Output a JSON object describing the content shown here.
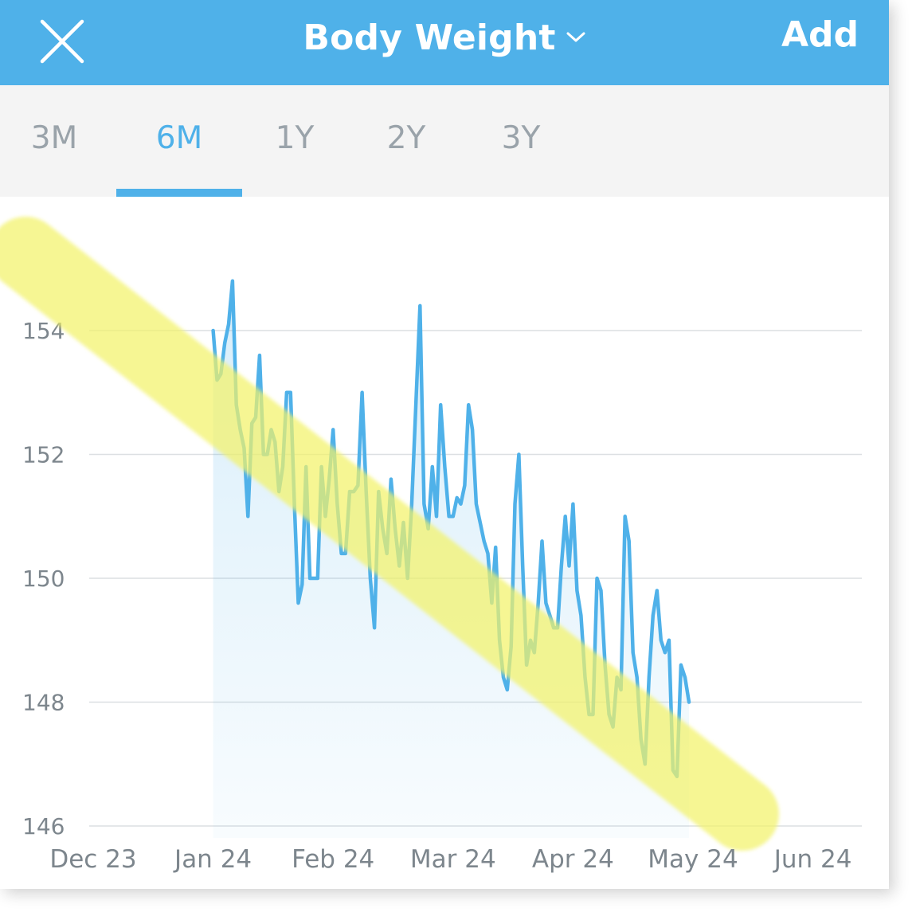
{
  "header": {
    "title": "Body Weight",
    "add_label": "Add",
    "icons": {
      "close": "close-icon",
      "dropdown": "chevron-down-icon"
    }
  },
  "tabs": [
    {
      "label": "3M",
      "active": false
    },
    {
      "label": "6M",
      "active": true
    },
    {
      "label": "1Y",
      "active": false
    },
    {
      "label": "2Y",
      "active": false
    },
    {
      "label": "3Y",
      "active": false
    }
  ],
  "colors": {
    "accent": "#4fb1e9",
    "header_bg": "#4fb1e9",
    "tab_bar_bg": "#f4f4f4",
    "line": "#4fb1e9",
    "highlight": "#f5f57a",
    "tick_text": "#7d868d"
  },
  "chart_data": {
    "type": "area",
    "x_tick_labels": [
      "Dec 23",
      "Jan 24",
      "Feb 24",
      "Mar 24",
      "Apr 24",
      "May 24",
      "Jun 24"
    ],
    "y_tick_labels": [
      "154",
      "152",
      "150",
      "148",
      "146"
    ],
    "y_ticks": [
      154,
      152,
      150,
      148,
      146
    ],
    "ylim": [
      145.8,
      155.0
    ],
    "xlim": [
      "2023-12-01",
      "2024-06-01"
    ],
    "grid": "horizontal",
    "annotation": "diagonal yellow highlighter stroke marking the downward trend",
    "series": [
      {
        "values": [
          [
            "2024-01-01",
            154.0
          ],
          [
            "2024-01-02",
            153.2
          ],
          [
            "2024-01-03",
            153.3
          ],
          [
            "2024-01-04",
            153.8
          ],
          [
            "2024-01-05",
            154.1
          ],
          [
            "2024-01-06",
            154.8
          ],
          [
            "2024-01-07",
            152.8
          ],
          [
            "2024-01-08",
            152.4
          ],
          [
            "2024-01-09",
            152.1
          ],
          [
            "2024-01-10",
            151.0
          ],
          [
            "2024-01-11",
            152.5
          ],
          [
            "2024-01-12",
            152.6
          ],
          [
            "2024-01-13",
            153.6
          ],
          [
            "2024-01-14",
            152.0
          ],
          [
            "2024-01-15",
            152.0
          ],
          [
            "2024-01-16",
            152.4
          ],
          [
            "2024-01-17",
            152.2
          ],
          [
            "2024-01-18",
            151.4
          ],
          [
            "2024-01-19",
            151.8
          ],
          [
            "2024-01-20",
            153.0
          ],
          [
            "2024-01-21",
            153.0
          ],
          [
            "2024-01-22",
            151.2
          ],
          [
            "2024-01-23",
            149.6
          ],
          [
            "2024-01-24",
            149.9
          ],
          [
            "2024-01-25",
            151.8
          ],
          [
            "2024-01-26",
            150.0
          ],
          [
            "2024-01-27",
            150.0
          ],
          [
            "2024-01-28",
            150.0
          ],
          [
            "2024-01-29",
            151.8
          ],
          [
            "2024-01-30",
            151.0
          ],
          [
            "2024-01-31",
            151.6
          ],
          [
            "2024-02-01",
            152.4
          ],
          [
            "2024-02-02",
            151.2
          ],
          [
            "2024-02-03",
            150.4
          ],
          [
            "2024-02-04",
            150.4
          ],
          [
            "2024-02-05",
            151.4
          ],
          [
            "2024-02-06",
            151.4
          ],
          [
            "2024-02-07",
            151.5
          ],
          [
            "2024-02-08",
            153.0
          ],
          [
            "2024-02-09",
            151.4
          ],
          [
            "2024-02-10",
            150.0
          ],
          [
            "2024-02-11",
            149.2
          ],
          [
            "2024-02-12",
            151.4
          ],
          [
            "2024-02-13",
            150.8
          ],
          [
            "2024-02-14",
            150.4
          ],
          [
            "2024-02-15",
            151.6
          ],
          [
            "2024-02-16",
            150.8
          ],
          [
            "2024-02-17",
            150.2
          ],
          [
            "2024-02-18",
            150.9
          ],
          [
            "2024-02-19",
            150.0
          ],
          [
            "2024-02-20",
            151.2
          ],
          [
            "2024-02-21",
            152.8
          ],
          [
            "2024-02-22",
            154.4
          ],
          [
            "2024-02-23",
            151.2
          ],
          [
            "2024-02-24",
            150.8
          ],
          [
            "2024-02-25",
            151.8
          ],
          [
            "2024-02-26",
            151.0
          ],
          [
            "2024-02-27",
            152.8
          ],
          [
            "2024-02-28",
            151.8
          ],
          [
            "2024-02-29",
            151.0
          ],
          [
            "2024-03-01",
            151.0
          ],
          [
            "2024-03-02",
            151.3
          ],
          [
            "2024-03-03",
            151.2
          ],
          [
            "2024-03-04",
            151.5
          ],
          [
            "2024-03-05",
            152.8
          ],
          [
            "2024-03-06",
            152.4
          ],
          [
            "2024-03-07",
            151.2
          ],
          [
            "2024-03-08",
            150.9
          ],
          [
            "2024-03-09",
            150.6
          ],
          [
            "2024-03-10",
            150.4
          ],
          [
            "2024-03-11",
            149.6
          ],
          [
            "2024-03-12",
            150.5
          ],
          [
            "2024-03-13",
            149.0
          ],
          [
            "2024-03-14",
            148.4
          ],
          [
            "2024-03-15",
            148.2
          ],
          [
            "2024-03-16",
            148.9
          ],
          [
            "2024-03-17",
            151.2
          ],
          [
            "2024-03-18",
            152.0
          ],
          [
            "2024-03-19",
            150.2
          ],
          [
            "2024-03-20",
            148.6
          ],
          [
            "2024-03-21",
            149.0
          ],
          [
            "2024-03-22",
            148.8
          ],
          [
            "2024-03-23",
            149.6
          ],
          [
            "2024-03-24",
            150.6
          ],
          [
            "2024-03-25",
            149.6
          ],
          [
            "2024-03-26",
            149.4
          ],
          [
            "2024-03-27",
            149.2
          ],
          [
            "2024-03-28",
            149.2
          ],
          [
            "2024-03-29",
            150.2
          ],
          [
            "2024-03-30",
            151.0
          ],
          [
            "2024-03-31",
            150.2
          ],
          [
            "2024-04-01",
            151.2
          ],
          [
            "2024-04-02",
            149.8
          ],
          [
            "2024-04-03",
            149.4
          ],
          [
            "2024-04-04",
            148.4
          ],
          [
            "2024-04-05",
            147.8
          ],
          [
            "2024-04-06",
            147.8
          ],
          [
            "2024-04-07",
            150.0
          ],
          [
            "2024-04-08",
            149.8
          ],
          [
            "2024-04-09",
            148.6
          ],
          [
            "2024-04-10",
            147.8
          ],
          [
            "2024-04-11",
            147.6
          ],
          [
            "2024-04-12",
            148.4
          ],
          [
            "2024-04-13",
            148.2
          ],
          [
            "2024-04-14",
            151.0
          ],
          [
            "2024-04-15",
            150.6
          ],
          [
            "2024-04-16",
            148.8
          ],
          [
            "2024-04-17",
            148.4
          ],
          [
            "2024-04-18",
            147.4
          ],
          [
            "2024-04-19",
            147.0
          ],
          [
            "2024-04-20",
            148.4
          ],
          [
            "2024-04-21",
            149.4
          ],
          [
            "2024-04-22",
            149.8
          ],
          [
            "2024-04-23",
            149.0
          ],
          [
            "2024-04-24",
            148.8
          ],
          [
            "2024-04-25",
            149.0
          ],
          [
            "2024-04-26",
            146.9
          ],
          [
            "2024-04-27",
            146.8
          ],
          [
            "2024-04-28",
            148.6
          ],
          [
            "2024-04-29",
            148.4
          ],
          [
            "2024-04-30",
            148.0
          ]
        ]
      }
    ]
  }
}
